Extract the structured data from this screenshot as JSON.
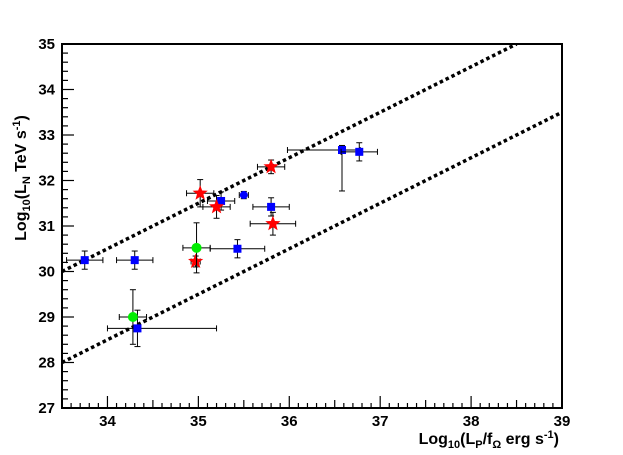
{
  "chart_data": {
    "type": "scatter",
    "title": "",
    "xlabel": {
      "main": "Log",
      "sub": "10",
      "rest": "(L",
      "sub2": "P",
      "rest2": "/f",
      "sub3": "Ω",
      "rest3": " erg s",
      "sup": "-1",
      "end": ")"
    },
    "ylabel": {
      "main": "Log",
      "sub": "10",
      "rest": "(L",
      "sub2": "N",
      "rest2": " TeV s",
      "sup": "-1",
      "end": ")"
    },
    "xlim": [
      33.5,
      39
    ],
    "ylim": [
      27,
      35
    ],
    "xticks": [
      "34",
      "35",
      "36",
      "37",
      "38",
      "39"
    ],
    "yticks": [
      "27",
      "28",
      "29",
      "30",
      "31",
      "32",
      "33",
      "34",
      "35"
    ],
    "grid": false,
    "lines": [
      {
        "style": "dotted",
        "x": [
          33.5,
          38.5
        ],
        "y": [
          30.0,
          35.0
        ]
      },
      {
        "style": "dotted",
        "x": [
          33.5,
          39.0
        ],
        "y": [
          28.0,
          33.5
        ]
      }
    ],
    "series": [
      {
        "marker": "square",
        "color": "#0000ff",
        "points": [
          {
            "x": 33.75,
            "y": 30.25,
            "xerr": [
              0.2,
              0.2
            ],
            "yerr": [
              0.2,
              0.2
            ]
          },
          {
            "x": 34.3,
            "y": 30.25,
            "xerr": [
              0.2,
              0.2
            ],
            "yerr": [
              0.2,
              0.2
            ]
          },
          {
            "x": 34.33,
            "y": 28.75,
            "xerr": [
              0.33,
              0.87
            ],
            "yerr": [
              0.4,
              0.4
            ]
          },
          {
            "x": 35.25,
            "y": 31.55,
            "xerr": [
              0.15,
              0.15
            ],
            "yerr": [
              0.2,
              0.2
            ]
          },
          {
            "x": 35.43,
            "y": 30.5,
            "xerr": [
              0.3,
              0.3
            ],
            "yerr": [
              0.2,
              0.2
            ]
          },
          {
            "x": 35.8,
            "y": 31.42,
            "xerr": [
              0.2,
              0.2
            ],
            "yerr": [
              0.2,
              0.2
            ]
          },
          {
            "x": 36.58,
            "y": 32.67,
            "xerr": [
              0.6,
              0.2
            ],
            "yerr": [
              0.9,
              0.1
            ]
          },
          {
            "x": 36.77,
            "y": 32.63,
            "xerr": [
              0.2,
              0.2
            ],
            "yerr": [
              0.2,
              0.2
            ]
          }
        ]
      },
      {
        "marker": "circle",
        "color": "#0000ff",
        "points": [
          {
            "x": 35.5,
            "y": 31.68,
            "xerr": [
              0.05,
              0.05
            ],
            "yerr": [
              0.08,
              0.08
            ]
          }
        ]
      },
      {
        "marker": "star",
        "color": "#ff0000",
        "points": [
          {
            "x": 35.02,
            "y": 31.72,
            "xerr": [
              0.15,
              0.15
            ],
            "yerr": [
              0.3,
              0.3
            ]
          },
          {
            "x": 35.2,
            "y": 31.42,
            "xerr": [
              0.15,
              0.15
            ],
            "yerr": [
              0.25,
              0.25
            ]
          },
          {
            "x": 34.97,
            "y": 30.22,
            "xerr": [
              0.05,
              0.05
            ],
            "yerr": [
              0.12,
              0.12
            ]
          },
          {
            "x": 35.8,
            "y": 32.3,
            "xerr": [
              0.15,
              0.15
            ],
            "yerr": [
              0.15,
              0.15
            ]
          },
          {
            "x": 35.82,
            "y": 31.05,
            "xerr": [
              0.25,
              0.25
            ],
            "yerr": [
              0.25,
              0.25
            ]
          }
        ]
      },
      {
        "marker": "circle",
        "color": "#00ee00",
        "points": [
          {
            "x": 34.98,
            "y": 30.52,
            "xerr": [
              0.15,
              0.15
            ],
            "yerr": [
              0.55,
              0.55
            ]
          },
          {
            "x": 34.28,
            "y": 29.0,
            "xerr": [
              0.15,
              0.15
            ],
            "yerr": [
              0.6,
              0.6
            ]
          }
        ]
      }
    ]
  }
}
